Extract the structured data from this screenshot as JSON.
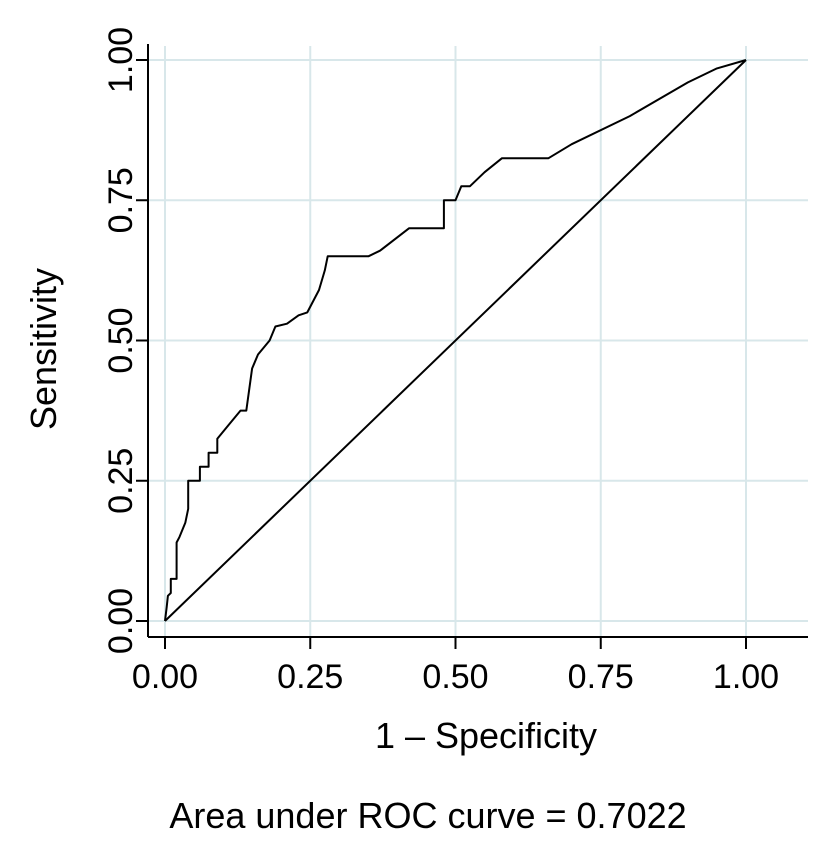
{
  "chart_data": {
    "type": "line",
    "title": "",
    "xlabel": "1 – Specificity",
    "ylabel": "Sensitivity",
    "caption": "Area under ROC curve = 0.7022",
    "xlim": [
      0,
      1
    ],
    "ylim": [
      0,
      1
    ],
    "x_ticks": [
      "0.00",
      "0.25",
      "0.50",
      "0.75",
      "1.00"
    ],
    "y_ticks": [
      "0.00",
      "0.25",
      "0.50",
      "0.75",
      "1.00"
    ],
    "grid": true,
    "colors": {
      "grid": "#d8e7ea",
      "line": "#000000",
      "axis": "#000000"
    },
    "series": [
      {
        "points": [
          [
            0.0,
            0.0
          ],
          [
            0.003,
            0.025
          ],
          [
            0.005,
            0.045
          ],
          [
            0.01,
            0.05
          ],
          [
            0.01,
            0.075
          ],
          [
            0.02,
            0.075
          ],
          [
            0.02,
            0.14
          ],
          [
            0.025,
            0.15
          ],
          [
            0.035,
            0.175
          ],
          [
            0.04,
            0.2
          ],
          [
            0.04,
            0.25
          ],
          [
            0.06,
            0.25
          ],
          [
            0.06,
            0.275
          ],
          [
            0.075,
            0.275
          ],
          [
            0.075,
            0.3
          ],
          [
            0.09,
            0.3
          ],
          [
            0.09,
            0.325
          ],
          [
            0.11,
            0.35
          ],
          [
            0.13,
            0.375
          ],
          [
            0.14,
            0.375
          ],
          [
            0.15,
            0.45
          ],
          [
            0.16,
            0.475
          ],
          [
            0.18,
            0.5
          ],
          [
            0.19,
            0.525
          ],
          [
            0.21,
            0.53
          ],
          [
            0.23,
            0.545
          ],
          [
            0.245,
            0.55
          ],
          [
            0.265,
            0.59
          ],
          [
            0.275,
            0.625
          ],
          [
            0.28,
            0.65
          ],
          [
            0.35,
            0.65
          ],
          [
            0.37,
            0.66
          ],
          [
            0.42,
            0.7
          ],
          [
            0.48,
            0.7
          ],
          [
            0.48,
            0.75
          ],
          [
            0.5,
            0.75
          ],
          [
            0.51,
            0.775
          ],
          [
            0.525,
            0.775
          ],
          [
            0.55,
            0.8
          ],
          [
            0.58,
            0.825
          ],
          [
            0.66,
            0.825
          ],
          [
            0.7,
            0.85
          ],
          [
            0.8,
            0.9
          ],
          [
            0.9,
            0.96
          ],
          [
            0.95,
            0.985
          ],
          [
            1.0,
            1.0
          ]
        ]
      },
      {
        "points": [
          [
            0,
            0
          ],
          [
            1,
            1
          ]
        ]
      }
    ]
  }
}
